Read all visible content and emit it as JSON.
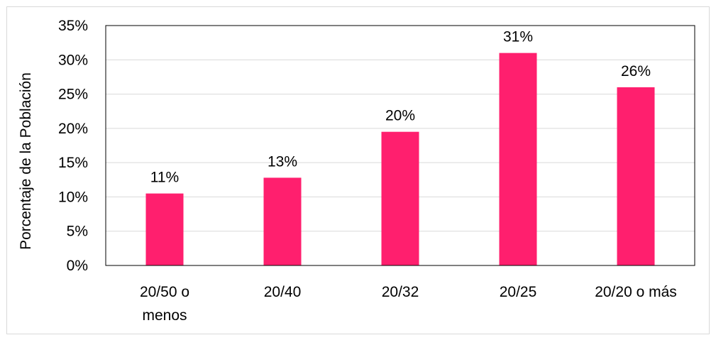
{
  "chart_data": {
    "type": "bar",
    "categories": [
      "20/50 o menos",
      "20/40",
      "20/32",
      "20/25",
      "20/20 o más"
    ],
    "category_lines": [
      [
        "20/50 o",
        "menos"
      ],
      [
        "20/40"
      ],
      [
        "20/32"
      ],
      [
        "20/25"
      ],
      [
        "20/20 o más"
      ]
    ],
    "values": [
      10.5,
      12.8,
      19.5,
      31,
      26
    ],
    "data_labels": [
      "11%",
      "13%",
      "20%",
      "31%",
      "26%"
    ],
    "ylabel": "Porcentaje de la Población",
    "xlabel": "",
    "ylim": [
      0,
      35
    ],
    "yticks": [
      0,
      5,
      10,
      15,
      20,
      25,
      30,
      35
    ],
    "ytick_labels": [
      "0%",
      "5%",
      "10%",
      "15%",
      "20%",
      "25%",
      "30%",
      "35%"
    ],
    "grid": true,
    "bar_color": "#ff1f6e",
    "grid_color": "#d9d9d9"
  }
}
